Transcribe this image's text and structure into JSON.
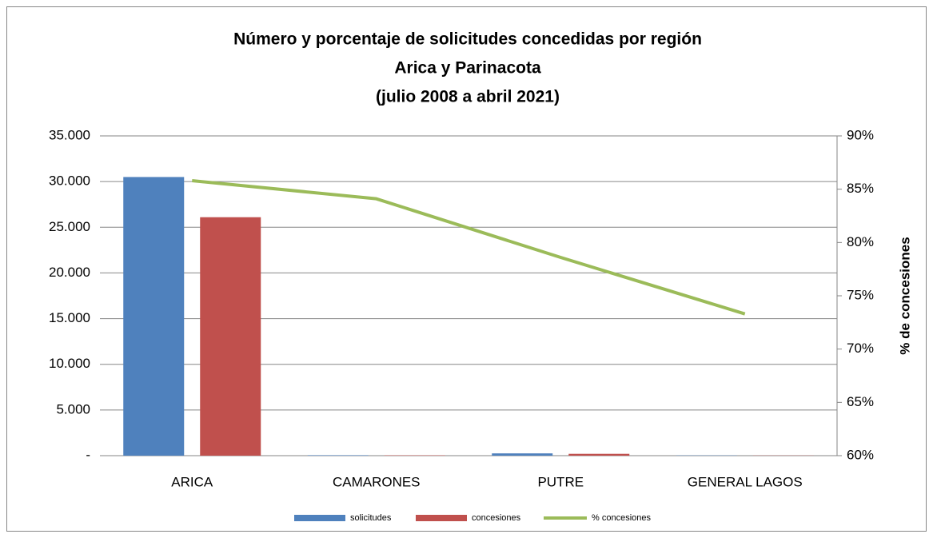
{
  "chart_data": {
    "type": "bar-line",
    "title": [
      "Número y porcentaje de solicitudes concedidas por región",
      "Arica y Parinacota",
      "(julio 2008 a abril 2021)"
    ],
    "categories": [
      "ARICA",
      "CAMARONES",
      "PUTRE",
      "GENERAL LAGOS"
    ],
    "series": [
      {
        "name": "solicitudes",
        "color": "#4f81bd",
        "values": [
          30500,
          50,
          250,
          30
        ]
      },
      {
        "name": "concesiones",
        "color": "#c0504d",
        "values": [
          26100,
          40,
          200,
          20
        ]
      },
      {
        "name": "% concesiones",
        "color": "#9bbb59",
        "axis": "y2",
        "values": [
          85.8,
          84.1,
          78.6,
          73.3
        ]
      }
    ],
    "ylim": [
      0,
      35000
    ],
    "yticks": [
      {
        "value": 0,
        "label": "-"
      },
      {
        "value": 5000,
        "label": "5.000"
      },
      {
        "value": 10000,
        "label": "10.000"
      },
      {
        "value": 15000,
        "label": "15.000"
      },
      {
        "value": 20000,
        "label": "20.000"
      },
      {
        "value": 25000,
        "label": "25.000"
      },
      {
        "value": 30000,
        "label": "30.000"
      },
      {
        "value": 35000,
        "label": "35.000"
      }
    ],
    "y2lim": [
      60,
      90
    ],
    "y2ticks": [
      {
        "value": 60,
        "label": "60%"
      },
      {
        "value": 65,
        "label": "65%"
      },
      {
        "value": 70,
        "label": "70%"
      },
      {
        "value": 75,
        "label": "75%"
      },
      {
        "value": 80,
        "label": "80%"
      },
      {
        "value": 85,
        "label": "85%"
      },
      {
        "value": 90,
        "label": "90%"
      }
    ],
    "y2label": "% de concesiones",
    "grid": true,
    "legend": "bottom"
  }
}
